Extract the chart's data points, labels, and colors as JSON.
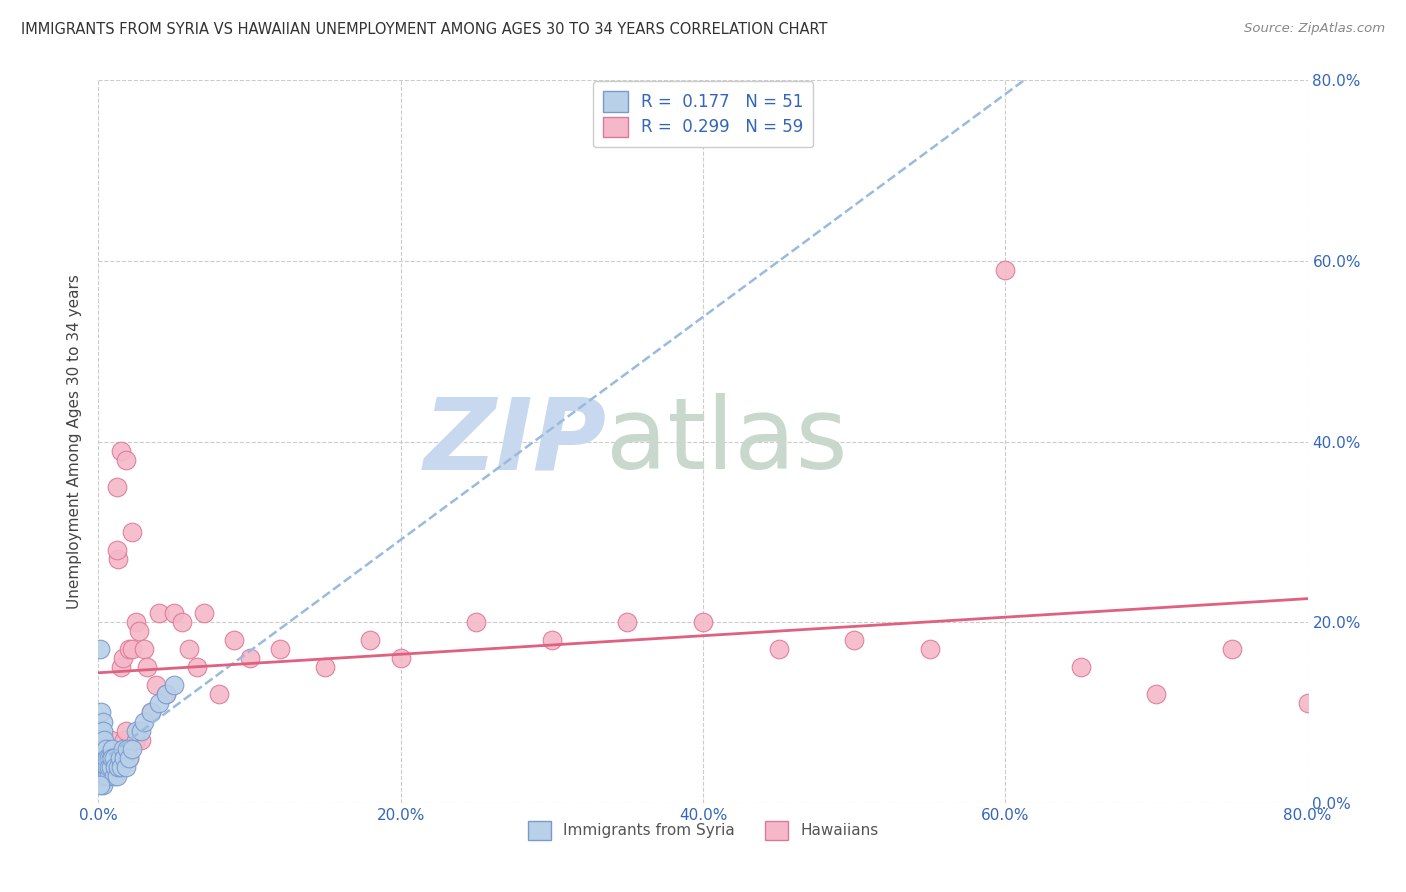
{
  "title": "IMMIGRANTS FROM SYRIA VS HAWAIIAN UNEMPLOYMENT AMONG AGES 30 TO 34 YEARS CORRELATION CHART",
  "source": "Source: ZipAtlas.com",
  "ylabel": "Unemployment Among Ages 30 to 34 years",
  "xlim": [
    0.0,
    0.8
  ],
  "ylim": [
    0.0,
    0.8
  ],
  "xticks": [
    0.0,
    0.2,
    0.4,
    0.6,
    0.8
  ],
  "yticks": [
    0.0,
    0.2,
    0.4,
    0.6,
    0.8
  ],
  "xticklabels": [
    "0.0%",
    "20.0%",
    "40.0%",
    "60.0%",
    "80.0%"
  ],
  "right_yticklabels": [
    "0.0%",
    "20.0%",
    "40.0%",
    "60.0%",
    "80.0%"
  ],
  "grid_color": "#cccccc",
  "background_color": "#ffffff",
  "series1_label": "Immigrants from Syria",
  "series1_color": "#b8d0e8",
  "series1_edge_color": "#7799cc",
  "series1_R": 0.177,
  "series1_N": 51,
  "series1_line_color": "#99bbdd",
  "series2_label": "Hawaiians",
  "series2_color": "#f5b8c8",
  "series2_edge_color": "#dd7799",
  "series2_R": 0.299,
  "series2_N": 59,
  "series2_line_color": "#e06080",
  "watermark_zip": "ZIP",
  "watermark_atlas": "atlas",
  "watermark_color_zip": "#c8d8ee",
  "watermark_color_atlas": "#c8d8cc",
  "series1_x": [
    0.001,
    0.001,
    0.001,
    0.002,
    0.002,
    0.002,
    0.002,
    0.003,
    0.003,
    0.003,
    0.003,
    0.003,
    0.004,
    0.004,
    0.004,
    0.004,
    0.005,
    0.005,
    0.005,
    0.005,
    0.006,
    0.006,
    0.006,
    0.007,
    0.007,
    0.007,
    0.008,
    0.008,
    0.009,
    0.009,
    0.01,
    0.01,
    0.011,
    0.012,
    0.013,
    0.014,
    0.015,
    0.016,
    0.017,
    0.018,
    0.019,
    0.02,
    0.022,
    0.025,
    0.028,
    0.03,
    0.035,
    0.04,
    0.045,
    0.05,
    0.001
  ],
  "series1_y": [
    0.17,
    0.05,
    0.08,
    0.03,
    0.06,
    0.1,
    0.04,
    0.07,
    0.09,
    0.02,
    0.05,
    0.08,
    0.03,
    0.06,
    0.04,
    0.07,
    0.03,
    0.05,
    0.04,
    0.06,
    0.03,
    0.05,
    0.04,
    0.03,
    0.05,
    0.04,
    0.05,
    0.04,
    0.06,
    0.05,
    0.03,
    0.05,
    0.04,
    0.03,
    0.04,
    0.05,
    0.04,
    0.06,
    0.05,
    0.04,
    0.06,
    0.05,
    0.06,
    0.08,
    0.08,
    0.09,
    0.1,
    0.11,
    0.12,
    0.13,
    0.02
  ],
  "series2_x": [
    0.001,
    0.002,
    0.003,
    0.004,
    0.005,
    0.006,
    0.007,
    0.008,
    0.009,
    0.01,
    0.012,
    0.013,
    0.015,
    0.016,
    0.017,
    0.018,
    0.019,
    0.02,
    0.022,
    0.025,
    0.027,
    0.03,
    0.032,
    0.035,
    0.038,
    0.04,
    0.045,
    0.05,
    0.055,
    0.06,
    0.065,
    0.07,
    0.08,
    0.09,
    0.1,
    0.12,
    0.15,
    0.18,
    0.2,
    0.25,
    0.3,
    0.35,
    0.4,
    0.45,
    0.5,
    0.55,
    0.6,
    0.65,
    0.7,
    0.75,
    0.8,
    0.015,
    0.02,
    0.025,
    0.01,
    0.012,
    0.018,
    0.022,
    0.028
  ],
  "series2_y": [
    0.05,
    0.07,
    0.03,
    0.05,
    0.04,
    0.06,
    0.04,
    0.07,
    0.04,
    0.05,
    0.35,
    0.27,
    0.15,
    0.16,
    0.07,
    0.08,
    0.06,
    0.17,
    0.17,
    0.2,
    0.19,
    0.17,
    0.15,
    0.1,
    0.13,
    0.21,
    0.12,
    0.21,
    0.2,
    0.17,
    0.15,
    0.21,
    0.12,
    0.18,
    0.16,
    0.17,
    0.15,
    0.18,
    0.16,
    0.2,
    0.18,
    0.2,
    0.2,
    0.17,
    0.18,
    0.17,
    0.59,
    0.15,
    0.12,
    0.17,
    0.11,
    0.39,
    0.05,
    0.07,
    0.04,
    0.28,
    0.38,
    0.3,
    0.07
  ]
}
